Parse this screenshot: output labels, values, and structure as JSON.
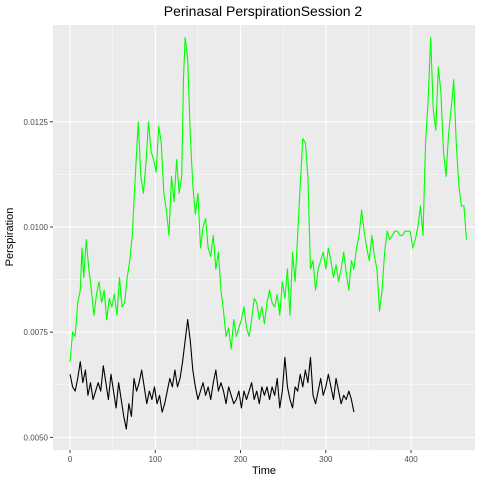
{
  "chart_data": {
    "type": "line",
    "title": "Perinasal PerspirationSession 2",
    "xlabel": "Time",
    "ylabel": "Perspiration",
    "xlim": [
      -20,
      475
    ],
    "ylim": [
      0.0047,
      0.0148
    ],
    "x_ticks": [
      0,
      100,
      200,
      300,
      400
    ],
    "x_tick_labels": [
      "0",
      "100",
      "200",
      "300",
      "400"
    ],
    "y_ticks": [
      0.005,
      0.0075,
      0.01,
      0.0125
    ],
    "y_tick_labels": [
      "0.0050",
      "0.0075",
      "0.0100",
      "0.0125"
    ],
    "grid": true,
    "background": "#ebebeb",
    "legend": "none",
    "series": [
      {
        "color": "#00ff00",
        "points": [
          [
            0,
            0.0068
          ],
          [
            3,
            0.0075
          ],
          [
            6,
            0.0074
          ],
          [
            9,
            0.0082
          ],
          [
            12,
            0.0085
          ],
          [
            14,
            0.0095
          ],
          [
            16,
            0.0088
          ],
          [
            19,
            0.0097
          ],
          [
            22,
            0.009
          ],
          [
            25,
            0.0085
          ],
          [
            28,
            0.0079
          ],
          [
            31,
            0.0084
          ],
          [
            34,
            0.0087
          ],
          [
            37,
            0.0082
          ],
          [
            40,
            0.0085
          ],
          [
            43,
            0.0078
          ],
          [
            46,
            0.0083
          ],
          [
            49,
            0.0081
          ],
          [
            52,
            0.0084
          ],
          [
            55,
            0.0079
          ],
          [
            58,
            0.0088
          ],
          [
            61,
            0.0081
          ],
          [
            64,
            0.0082
          ],
          [
            67,
            0.0088
          ],
          [
            70,
            0.0092
          ],
          [
            73,
            0.0098
          ],
          [
            76,
            0.011
          ],
          [
            80,
            0.0125
          ],
          [
            83,
            0.0112
          ],
          [
            86,
            0.0108
          ],
          [
            89,
            0.0115
          ],
          [
            92,
            0.0125
          ],
          [
            95,
            0.0118
          ],
          [
            98,
            0.0116
          ],
          [
            101,
            0.0113
          ],
          [
            104,
            0.0124
          ],
          [
            107,
            0.012
          ],
          [
            110,
            0.0108
          ],
          [
            113,
            0.0104
          ],
          [
            116,
            0.0098
          ],
          [
            119,
            0.0112
          ],
          [
            122,
            0.0106
          ],
          [
            125,
            0.0116
          ],
          [
            128,
            0.0108
          ],
          [
            131,
            0.0112
          ],
          [
            133,
            0.0135
          ],
          [
            135,
            0.0145
          ],
          [
            138,
            0.014
          ],
          [
            141,
            0.0122
          ],
          [
            144,
            0.011
          ],
          [
            147,
            0.0103
          ],
          [
            150,
            0.0108
          ],
          [
            153,
            0.0095
          ],
          [
            156,
            0.01
          ],
          [
            159,
            0.0102
          ],
          [
            162,
            0.0095
          ],
          [
            165,
            0.0093
          ],
          [
            168,
            0.0098
          ],
          [
            171,
            0.009
          ],
          [
            174,
            0.0094
          ],
          [
            177,
            0.0085
          ],
          [
            180,
            0.008
          ],
          [
            183,
            0.0074
          ],
          [
            186,
            0.0076
          ],
          [
            189,
            0.0071
          ],
          [
            192,
            0.0078
          ],
          [
            195,
            0.0074
          ],
          [
            198,
            0.0076
          ],
          [
            201,
            0.0078
          ],
          [
            204,
            0.0081
          ],
          [
            207,
            0.0076
          ],
          [
            210,
            0.0074
          ],
          [
            213,
            0.0078
          ],
          [
            216,
            0.0083
          ],
          [
            219,
            0.0082
          ],
          [
            222,
            0.0078
          ],
          [
            225,
            0.0081
          ],
          [
            228,
            0.0077
          ],
          [
            231,
            0.0082
          ],
          [
            234,
            0.0085
          ],
          [
            237,
            0.0082
          ],
          [
            240,
            0.0081
          ],
          [
            243,
            0.0084
          ],
          [
            246,
            0.0079
          ],
          [
            249,
            0.0087
          ],
          [
            252,
            0.0083
          ],
          [
            255,
            0.009
          ],
          [
            258,
            0.0079
          ],
          [
            261,
            0.0094
          ],
          [
            264,
            0.0087
          ],
          [
            267,
            0.0098
          ],
          [
            270,
            0.011
          ],
          [
            273,
            0.0121
          ],
          [
            276,
            0.012
          ],
          [
            279,
            0.0112
          ],
          [
            282,
            0.009
          ],
          [
            285,
            0.0092
          ],
          [
            288,
            0.0085
          ],
          [
            291,
            0.009
          ],
          [
            294,
            0.0092
          ],
          [
            297,
            0.0094
          ],
          [
            300,
            0.009
          ],
          [
            303,
            0.0095
          ],
          [
            306,
            0.0092
          ],
          [
            309,
            0.0088
          ],
          [
            312,
            0.0091
          ],
          [
            315,
            0.0087
          ],
          [
            318,
            0.009
          ],
          [
            321,
            0.0094
          ],
          [
            324,
            0.0089
          ],
          [
            327,
            0.0085
          ],
          [
            330,
            0.0092
          ],
          [
            333,
            0.009
          ],
          [
            336,
            0.0095
          ],
          [
            339,
            0.0098
          ],
          [
            342,
            0.0104
          ],
          [
            345,
            0.0099
          ],
          [
            348,
            0.0095
          ],
          [
            351,
            0.0092
          ],
          [
            354,
            0.0098
          ],
          [
            357,
            0.0093
          ],
          [
            360,
            0.009
          ],
          [
            363,
            0.008
          ],
          [
            366,
            0.0085
          ],
          [
            369,
            0.0094
          ],
          [
            372,
            0.0099
          ],
          [
            375,
            0.0097
          ],
          [
            378,
            0.0098
          ],
          [
            381,
            0.0099
          ],
          [
            384,
            0.0099
          ],
          [
            387,
            0.0098
          ],
          [
            390,
            0.0098
          ],
          [
            393,
            0.0099
          ],
          [
            396,
            0.0099
          ],
          [
            399,
            0.0099
          ],
          [
            402,
            0.0095
          ],
          [
            405,
            0.0097
          ],
          [
            408,
            0.01
          ],
          [
            411,
            0.0105
          ],
          [
            414,
            0.0098
          ],
          [
            417,
            0.012
          ],
          [
            420,
            0.013
          ],
          [
            423,
            0.0145
          ],
          [
            426,
            0.0128
          ],
          [
            429,
            0.0123
          ],
          [
            432,
            0.0138
          ],
          [
            435,
            0.0132
          ],
          [
            438,
            0.0118
          ],
          [
            441,
            0.0112
          ],
          [
            444,
            0.0122
          ],
          [
            447,
            0.0128
          ],
          [
            450,
            0.0135
          ],
          [
            453,
            0.012
          ],
          [
            456,
            0.011
          ],
          [
            459,
            0.0105
          ],
          [
            462,
            0.0105
          ],
          [
            465,
            0.0097
          ]
        ]
      },
      {
        "color": "#000000",
        "points": [
          [
            0,
            0.0065
          ],
          [
            3,
            0.0062
          ],
          [
            6,
            0.0061
          ],
          [
            9,
            0.0064
          ],
          [
            12,
            0.0068
          ],
          [
            15,
            0.0063
          ],
          [
            18,
            0.0066
          ],
          [
            21,
            0.006
          ],
          [
            24,
            0.0063
          ],
          [
            27,
            0.0059
          ],
          [
            30,
            0.0061
          ],
          [
            33,
            0.0063
          ],
          [
            36,
            0.0061
          ],
          [
            39,
            0.0067
          ],
          [
            42,
            0.0063
          ],
          [
            45,
            0.0059
          ],
          [
            48,
            0.0065
          ],
          [
            51,
            0.0061
          ],
          [
            54,
            0.0057
          ],
          [
            57,
            0.0063
          ],
          [
            60,
            0.0059
          ],
          [
            63,
            0.0055
          ],
          [
            66,
            0.0052
          ],
          [
            69,
            0.0058
          ],
          [
            72,
            0.0055
          ],
          [
            75,
            0.0064
          ],
          [
            78,
            0.0061
          ],
          [
            81,
            0.0063
          ],
          [
            84,
            0.0066
          ],
          [
            87,
            0.0062
          ],
          [
            90,
            0.0058
          ],
          [
            93,
            0.0061
          ],
          [
            96,
            0.0059
          ],
          [
            99,
            0.0062
          ],
          [
            102,
            0.0058
          ],
          [
            105,
            0.006
          ],
          [
            108,
            0.0056
          ],
          [
            111,
            0.0058
          ],
          [
            114,
            0.0061
          ],
          [
            117,
            0.0064
          ],
          [
            120,
            0.0062
          ],
          [
            123,
            0.0066
          ],
          [
            126,
            0.0062
          ],
          [
            129,
            0.0064
          ],
          [
            132,
            0.0068
          ],
          [
            135,
            0.0073
          ],
          [
            138,
            0.0078
          ],
          [
            141,
            0.0073
          ],
          [
            144,
            0.0066
          ],
          [
            147,
            0.0062
          ],
          [
            150,
            0.0059
          ],
          [
            153,
            0.0061
          ],
          [
            156,
            0.0063
          ],
          [
            159,
            0.006
          ],
          [
            162,
            0.0062
          ],
          [
            165,
            0.0059
          ],
          [
            168,
            0.0063
          ],
          [
            171,
            0.0066
          ],
          [
            174,
            0.0061
          ],
          [
            177,
            0.0063
          ],
          [
            180,
            0.0061
          ],
          [
            183,
            0.0058
          ],
          [
            186,
            0.0062
          ],
          [
            189,
            0.006
          ],
          [
            192,
            0.0058
          ],
          [
            195,
            0.0059
          ],
          [
            198,
            0.0061
          ],
          [
            201,
            0.0057
          ],
          [
            204,
            0.0061
          ],
          [
            207,
            0.0059
          ],
          [
            210,
            0.0061
          ],
          [
            213,
            0.0063
          ],
          [
            216,
            0.0059
          ],
          [
            219,
            0.0061
          ],
          [
            222,
            0.0058
          ],
          [
            225,
            0.0062
          ],
          [
            228,
            0.006
          ],
          [
            231,
            0.0062
          ],
          [
            234,
            0.0059
          ],
          [
            237,
            0.0062
          ],
          [
            240,
            0.006
          ],
          [
            243,
            0.0064
          ],
          [
            246,
            0.0057
          ],
          [
            249,
            0.0061
          ],
          [
            252,
            0.0069
          ],
          [
            255,
            0.0062
          ],
          [
            258,
            0.0059
          ],
          [
            261,
            0.0057
          ],
          [
            264,
            0.0062
          ],
          [
            267,
            0.0061
          ],
          [
            270,
            0.0065
          ],
          [
            273,
            0.0062
          ],
          [
            276,
            0.0066
          ],
          [
            279,
            0.0063
          ],
          [
            282,
            0.0069
          ],
          [
            285,
            0.006
          ],
          [
            288,
            0.0058
          ],
          [
            291,
            0.0061
          ],
          [
            294,
            0.0064
          ],
          [
            297,
            0.006
          ],
          [
            300,
            0.0062
          ],
          [
            303,
            0.0065
          ],
          [
            306,
            0.0062
          ],
          [
            309,
            0.0059
          ],
          [
            312,
            0.0064
          ],
          [
            315,
            0.0061
          ],
          [
            318,
            0.0058
          ],
          [
            321,
            0.006
          ],
          [
            324,
            0.0059
          ],
          [
            327,
            0.0061
          ],
          [
            330,
            0.0059
          ],
          [
            333,
            0.0056
          ]
        ]
      }
    ]
  }
}
